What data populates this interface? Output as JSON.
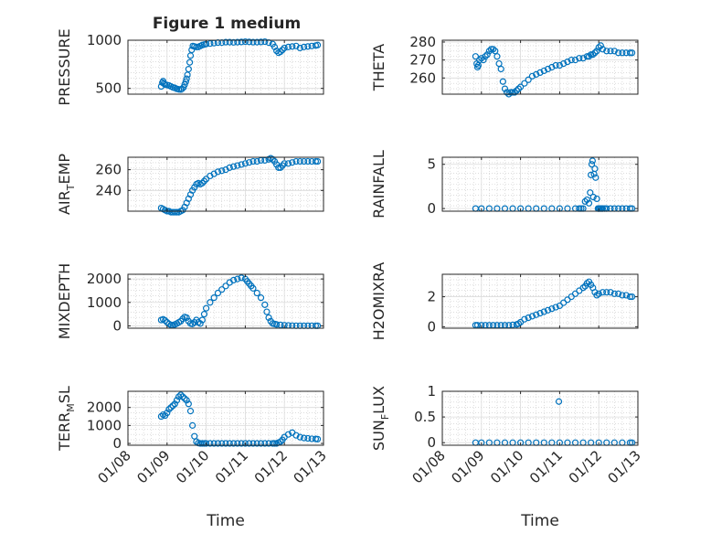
{
  "figure": {
    "title": "Figure 1 medium",
    "colors": {
      "marker": "#0072bd",
      "axis": "#262626",
      "grid": "#c8c8c8",
      "background": "#ffffff"
    }
  },
  "chart_data": [
    {
      "type": "scatter",
      "title": "Figure 1 medium",
      "ylabel": "PRESSURE",
      "xlabel": "",
      "xlim": [
        0,
        5
      ],
      "ylim": [
        440,
        1000
      ],
      "yticks": [
        500,
        1000
      ],
      "xticks": [
        0,
        1,
        2,
        3,
        4,
        5
      ],
      "xticklabels": [
        "01/08",
        "01/09",
        "01/10",
        "01/11",
        "01/12",
        "01/13"
      ],
      "grid": true,
      "series": [
        {
          "x": [
            0.85,
            0.88,
            0.9,
            0.92,
            0.95,
            1.0,
            1.05,
            1.1,
            1.15,
            1.2,
            1.25,
            1.3,
            1.35,
            1.38,
            1.42,
            1.45,
            1.48,
            1.5,
            1.52,
            1.55,
            1.58,
            1.6,
            1.63,
            1.66,
            1.7,
            1.75,
            1.8,
            1.85,
            1.9,
            1.95,
            2.0,
            2.1,
            2.2,
            2.3,
            2.4,
            2.5,
            2.6,
            2.7,
            2.8,
            2.9,
            3.0,
            3.1,
            3.2,
            3.3,
            3.4,
            3.5,
            3.6,
            3.7,
            3.75,
            3.8,
            3.85,
            3.9,
            3.95,
            4.0,
            4.1,
            4.2,
            4.3,
            4.4,
            4.5,
            4.6,
            4.7,
            4.8,
            4.85
          ],
          "y": [
            520,
            560,
            575,
            550,
            540,
            535,
            530,
            520,
            510,
            505,
            495,
            490,
            488,
            495,
            510,
            540,
            570,
            600,
            640,
            700,
            770,
            840,
            900,
            940,
            935,
            930,
            930,
            940,
            950,
            955,
            960,
            965,
            970,
            975,
            975,
            980,
            980,
            978,
            980,
            982,
            985,
            983,
            980,
            980,
            982,
            985,
            975,
            960,
            930,
            890,
            870,
            880,
            900,
            920,
            930,
            935,
            940,
            920,
            930,
            935,
            940,
            945,
            950
          ]
        }
      ]
    },
    {
      "type": "scatter",
      "ylabel": "THETA",
      "xlabel": "",
      "xlim": [
        0,
        5
      ],
      "ylim": [
        251,
        281
      ],
      "yticks": [
        260,
        270,
        280
      ],
      "xticks": [
        0,
        1,
        2,
        3,
        4,
        5
      ],
      "xticklabels": [
        "01/08",
        "01/09",
        "01/10",
        "01/11",
        "01/12",
        "01/13"
      ],
      "grid": true,
      "series": [
        {
          "x": [
            0.85,
            0.88,
            0.9,
            0.92,
            0.95,
            1.0,
            1.05,
            1.1,
            1.15,
            1.2,
            1.25,
            1.3,
            1.35,
            1.4,
            1.45,
            1.5,
            1.55,
            1.6,
            1.65,
            1.7,
            1.75,
            1.8,
            1.85,
            1.9,
            1.95,
            2.0,
            2.1,
            2.2,
            2.3,
            2.4,
            2.5,
            2.6,
            2.7,
            2.8,
            2.9,
            3.0,
            3.1,
            3.2,
            3.3,
            3.4,
            3.5,
            3.6,
            3.7,
            3.75,
            3.8,
            3.85,
            3.9,
            3.95,
            4.0,
            4.05,
            4.1,
            4.2,
            4.3,
            4.4,
            4.5,
            4.6,
            4.7,
            4.8,
            4.85
          ],
          "y": [
            272,
            268,
            266,
            267,
            270,
            271,
            270,
            272,
            273,
            275,
            276,
            276,
            275,
            272,
            268,
            265,
            258,
            254,
            252,
            251,
            252,
            252,
            252,
            253,
            254,
            255,
            257,
            259,
            261,
            262,
            263,
            264,
            265,
            266,
            267,
            267,
            268,
            269,
            270,
            270,
            271,
            271,
            272,
            272,
            273,
            273,
            274,
            275,
            277,
            278,
            276,
            275,
            275,
            275,
            274,
            274,
            274,
            274,
            274
          ]
        }
      ]
    },
    {
      "type": "scatter",
      "ylabel": "AIR_TEMP",
      "ylabel_main": "AIR",
      "ylabel_sub": "T",
      "ylabel_rest": "EMP",
      "xlabel": "",
      "xlim": [
        0,
        5
      ],
      "ylim": [
        220,
        272
      ],
      "yticks": [
        240,
        260
      ],
      "xticks": [
        0,
        1,
        2,
        3,
        4,
        5
      ],
      "xticklabels": [
        "01/08",
        "01/09",
        "01/10",
        "01/11",
        "01/12",
        "01/13"
      ],
      "grid": true,
      "series": [
        {
          "x": [
            0.85,
            0.9,
            0.95,
            1.0,
            1.05,
            1.1,
            1.15,
            1.2,
            1.25,
            1.3,
            1.35,
            1.4,
            1.45,
            1.5,
            1.55,
            1.6,
            1.65,
            1.7,
            1.75,
            1.8,
            1.85,
            1.9,
            1.95,
            2.0,
            2.1,
            2.2,
            2.3,
            2.4,
            2.5,
            2.6,
            2.7,
            2.8,
            2.9,
            3.0,
            3.1,
            3.2,
            3.3,
            3.4,
            3.5,
            3.6,
            3.65,
            3.7,
            3.75,
            3.8,
            3.85,
            3.9,
            3.95,
            4.0,
            4.1,
            4.2,
            4.3,
            4.4,
            4.5,
            4.6,
            4.7,
            4.8,
            4.85
          ],
          "y": [
            223,
            222,
            221,
            220,
            220,
            219,
            219,
            219,
            219,
            219,
            220,
            221,
            224,
            228,
            232,
            236,
            240,
            243,
            246,
            247,
            246,
            247,
            249,
            251,
            254,
            256,
            258,
            259,
            260,
            262,
            263,
            264,
            265,
            266,
            267,
            268,
            268,
            269,
            269,
            270,
            271,
            270,
            268,
            265,
            262,
            262,
            264,
            266,
            266,
            267,
            268,
            268,
            268,
            268,
            268,
            268,
            268
          ]
        }
      ]
    },
    {
      "type": "scatter",
      "ylabel": "RAINFALL",
      "xlabel": "",
      "xlim": [
        0,
        5
      ],
      "ylim": [
        -0.3,
        5.8
      ],
      "yticks": [
        0,
        5
      ],
      "xticks": [
        0,
        1,
        2,
        3,
        4,
        5
      ],
      "xticklabels": [
        "01/08",
        "01/09",
        "01/10",
        "01/11",
        "01/12",
        "01/13"
      ],
      "grid": true,
      "series": [
        {
          "x": [
            0.85,
            1.0,
            1.2,
            1.4,
            1.6,
            1.8,
            2.0,
            2.2,
            2.4,
            2.6,
            2.8,
            3.0,
            3.2,
            3.4,
            3.5,
            3.55,
            3.6,
            3.65,
            3.7,
            3.75,
            3.78,
            3.8,
            3.82,
            3.84,
            3.86,
            3.88,
            3.9,
            3.92,
            3.95,
            3.98,
            4.0,
            4.02,
            4.05,
            4.08,
            4.1,
            4.15,
            4.2,
            4.3,
            4.4,
            4.5,
            4.6,
            4.7,
            4.8,
            4.85
          ],
          "y": [
            0,
            0,
            0,
            0,
            0,
            0,
            0,
            0,
            0,
            0,
            0,
            0,
            0,
            0,
            0,
            0,
            0,
            0.8,
            1.0,
            0.6,
            1.8,
            3.8,
            5.0,
            5.4,
            1.3,
            3.9,
            4.5,
            3.5,
            1.1,
            0,
            0,
            0,
            0,
            0,
            0,
            0,
            0,
            0,
            0,
            0,
            0,
            0,
            0,
            0
          ]
        }
      ]
    },
    {
      "type": "scatter",
      "ylabel": "MIXDEPTH",
      "xlabel": "",
      "xlim": [
        0,
        5
      ],
      "ylim": [
        -100,
        2200
      ],
      "yticks": [
        0,
        1000,
        2000
      ],
      "xticks": [
        0,
        1,
        2,
        3,
        4,
        5
      ],
      "xticklabels": [
        "01/08",
        "01/09",
        "01/10",
        "01/11",
        "01/12",
        "01/13"
      ],
      "grid": true,
      "series": [
        {
          "x": [
            0.85,
            0.9,
            0.95,
            1.0,
            1.05,
            1.1,
            1.15,
            1.2,
            1.25,
            1.3,
            1.35,
            1.4,
            1.45,
            1.5,
            1.55,
            1.6,
            1.65,
            1.7,
            1.75,
            1.8,
            1.85,
            1.9,
            1.95,
            2.0,
            2.1,
            2.2,
            2.3,
            2.4,
            2.5,
            2.6,
            2.7,
            2.8,
            2.9,
            3.0,
            3.05,
            3.1,
            3.15,
            3.2,
            3.3,
            3.4,
            3.5,
            3.55,
            3.6,
            3.65,
            3.7,
            3.75,
            3.8,
            3.9,
            4.0,
            4.1,
            4.2,
            4.3,
            4.4,
            4.5,
            4.6,
            4.7,
            4.8,
            4.85
          ],
          "y": [
            250,
            280,
            230,
            150,
            80,
            40,
            30,
            60,
            100,
            150,
            200,
            300,
            380,
            350,
            200,
            100,
            80,
            150,
            250,
            150,
            100,
            250,
            500,
            750,
            1000,
            1200,
            1400,
            1550,
            1700,
            1850,
            1950,
            2000,
            2050,
            2000,
            1900,
            1800,
            1700,
            1600,
            1400,
            1200,
            900,
            600,
            350,
            200,
            100,
            80,
            60,
            40,
            30,
            20,
            10,
            5,
            5,
            5,
            5,
            5,
            5,
            5
          ]
        }
      ]
    },
    {
      "type": "scatter",
      "ylabel": "H2OMIXRA",
      "xlabel": "",
      "xlim": [
        0,
        5
      ],
      "ylim": [
        -0.1,
        3.5
      ],
      "yticks": [
        0,
        2
      ],
      "xticks": [
        0,
        1,
        2,
        3,
        4,
        5
      ],
      "xticklabels": [
        "01/08",
        "01/09",
        "01/10",
        "01/11",
        "01/12",
        "01/13"
      ],
      "grid": true,
      "series": [
        {
          "x": [
            0.85,
            0.9,
            1.0,
            1.1,
            1.2,
            1.3,
            1.4,
            1.5,
            1.6,
            1.7,
            1.8,
            1.9,
            1.95,
            2.0,
            2.1,
            2.2,
            2.3,
            2.4,
            2.5,
            2.6,
            2.7,
            2.8,
            2.9,
            3.0,
            3.1,
            3.2,
            3.3,
            3.4,
            3.5,
            3.6,
            3.65,
            3.7,
            3.75,
            3.8,
            3.85,
            3.9,
            3.95,
            4.0,
            4.1,
            4.2,
            4.3,
            4.4,
            4.5,
            4.6,
            4.7,
            4.8,
            4.85
          ],
          "y": [
            0.1,
            0.1,
            0.1,
            0.1,
            0.1,
            0.1,
            0.1,
            0.1,
            0.1,
            0.1,
            0.12,
            0.15,
            0.2,
            0.3,
            0.5,
            0.6,
            0.7,
            0.8,
            0.9,
            1.0,
            1.1,
            1.2,
            1.3,
            1.4,
            1.6,
            1.8,
            2.0,
            2.2,
            2.4,
            2.6,
            2.7,
            2.9,
            3.0,
            2.8,
            2.6,
            2.3,
            2.1,
            2.2,
            2.3,
            2.3,
            2.3,
            2.2,
            2.2,
            2.1,
            2.1,
            2.0,
            2.0
          ]
        }
      ]
    },
    {
      "type": "scatter",
      "ylabel": "TERR_MSL",
      "ylabel_main": "TERR",
      "ylabel_sub": "M",
      "ylabel_rest": "SL",
      "xlabel": "Time",
      "xlim": [
        0,
        5
      ],
      "ylim": [
        -100,
        2900
      ],
      "yticks": [
        0,
        1000,
        2000
      ],
      "xticks": [
        0,
        1,
        2,
        3,
        4,
        5
      ],
      "xticklabels": [
        "01/08",
        "01/09",
        "01/10",
        "01/11",
        "01/12",
        "01/13"
      ],
      "grid": true,
      "series": [
        {
          "x": [
            0.85,
            0.9,
            0.95,
            1.0,
            1.05,
            1.1,
            1.15,
            1.2,
            1.25,
            1.3,
            1.35,
            1.4,
            1.45,
            1.5,
            1.55,
            1.6,
            1.65,
            1.7,
            1.75,
            1.8,
            1.85,
            1.9,
            1.95,
            2.0,
            2.1,
            2.2,
            2.3,
            2.4,
            2.5,
            2.6,
            2.7,
            2.8,
            2.9,
            3.0,
            3.1,
            3.2,
            3.3,
            3.4,
            3.5,
            3.6,
            3.7,
            3.75,
            3.8,
            3.85,
            3.9,
            3.95,
            4.0,
            4.1,
            4.2,
            4.3,
            4.4,
            4.5,
            4.6,
            4.7,
            4.8,
            4.85
          ],
          "y": [
            1500,
            1600,
            1550,
            1700,
            1900,
            2000,
            2100,
            2200,
            2400,
            2600,
            2700,
            2600,
            2500,
            2400,
            2200,
            1800,
            1000,
            400,
            100,
            20,
            0,
            0,
            0,
            0,
            0,
            0,
            0,
            0,
            0,
            0,
            0,
            0,
            0,
            0,
            0,
            0,
            0,
            0,
            0,
            0,
            0,
            0,
            0,
            50,
            100,
            200,
            350,
            500,
            600,
            450,
            350,
            300,
            280,
            260,
            250,
            240
          ]
        }
      ]
    },
    {
      "type": "scatter",
      "ylabel": "SUN_FLUX",
      "ylabel_main": "SUN",
      "ylabel_sub": "F",
      "ylabel_rest": "LUX",
      "xlabel": "Time",
      "xlim": [
        0,
        5
      ],
      "ylim": [
        -0.05,
        1.0
      ],
      "yticks": [
        0,
        0.5,
        1
      ],
      "xticks": [
        0,
        1,
        2,
        3,
        4,
        5
      ],
      "xticklabels": [
        "01/08",
        "01/09",
        "01/10",
        "01/11",
        "01/12",
        "01/13"
      ],
      "grid": true,
      "series": [
        {
          "x": [
            0.85,
            1.0,
            1.2,
            1.4,
            1.6,
            1.8,
            2.0,
            2.2,
            2.4,
            2.6,
            2.8,
            3.0,
            3.2,
            3.4,
            3.6,
            3.8,
            4.0,
            4.2,
            4.4,
            4.6,
            4.8,
            4.85,
            2.98
          ],
          "y": [
            0,
            0,
            0,
            0,
            0,
            0,
            0,
            0,
            0,
            0,
            0,
            0,
            0,
            0,
            0,
            0,
            0,
            0,
            0,
            0,
            0,
            0,
            0.8
          ]
        }
      ]
    }
  ]
}
